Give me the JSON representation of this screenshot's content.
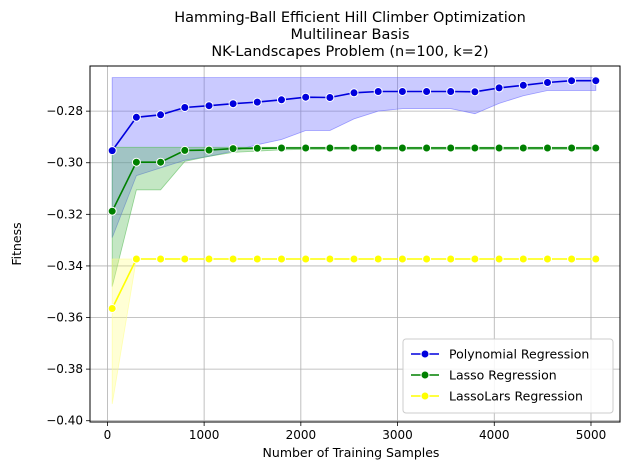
{
  "chart_data": {
    "type": "line",
    "title_lines": [
      "Hamming-Ball Efficient Hill Climber Optimization",
      "Multilinear Basis",
      "NK-Landscapes Problem (n=100, k=2)"
    ],
    "xlabel": "Number of Training Samples",
    "ylabel": "Fitness",
    "xlim": [
      -180,
      5300
    ],
    "ylim": [
      -0.4005,
      -0.2625
    ],
    "xticks": [
      0,
      1000,
      2000,
      3000,
      4000,
      5000
    ],
    "xtick_labels": [
      "0",
      "1000",
      "2000",
      "3000",
      "4000",
      "5000"
    ],
    "yticks": [
      -0.4,
      -0.38,
      -0.36,
      -0.34,
      -0.32,
      -0.3,
      -0.28
    ],
    "ytick_labels": [
      "−0.40",
      "−0.38",
      "−0.36",
      "−0.34",
      "−0.32",
      "−0.30",
      "−0.28"
    ],
    "grid": true,
    "legend_position": "lower-right",
    "x": [
      50,
      300,
      550,
      800,
      1050,
      1300,
      1550,
      1800,
      2050,
      2300,
      2550,
      2800,
      3050,
      3300,
      3550,
      3800,
      4050,
      4300,
      4550,
      4800,
      5050
    ],
    "series": [
      {
        "name": "Polynomial Regression",
        "color": "#0000dd",
        "band_color": "#6666ff",
        "values": [
          -0.2953,
          -0.2824,
          -0.2814,
          -0.2786,
          -0.2779,
          -0.2771,
          -0.2765,
          -0.2756,
          -0.2746,
          -0.2747,
          -0.2729,
          -0.2724,
          -0.2724,
          -0.2724,
          -0.2724,
          -0.2725,
          -0.271,
          -0.27,
          -0.2689,
          -0.2682,
          -0.2682
        ],
        "lower": [
          -0.329,
          -0.305,
          -0.302,
          -0.299,
          -0.2975,
          -0.2955,
          -0.293,
          -0.291,
          -0.2875,
          -0.2875,
          -0.283,
          -0.28,
          -0.279,
          -0.279,
          -0.279,
          -0.281,
          -0.277,
          -0.274,
          -0.272,
          -0.272,
          -0.272
        ],
        "upper": [
          -0.267,
          -0.267,
          -0.267,
          -0.267,
          -0.267,
          -0.267,
          -0.267,
          -0.267,
          -0.267,
          -0.267,
          -0.267,
          -0.267,
          -0.267,
          -0.267,
          -0.267,
          -0.267,
          -0.267,
          -0.267,
          -0.267,
          -0.267,
          -0.267
        ]
      },
      {
        "name": "Lasso Regression",
        "color": "#008000",
        "band_color": "#55bb55",
        "values": [
          -0.3188,
          -0.2998,
          -0.2998,
          -0.2952,
          -0.2951,
          -0.2945,
          -0.2944,
          -0.2943,
          -0.2943,
          -0.2943,
          -0.2943,
          -0.2943,
          -0.2943,
          -0.2943,
          -0.2943,
          -0.2943,
          -0.2943,
          -0.2943,
          -0.2943,
          -0.2943,
          -0.2943
        ],
        "lower": [
          -0.348,
          -0.3105,
          -0.3105,
          -0.2995,
          -0.2975,
          -0.296,
          -0.2955,
          -0.295,
          -0.2948,
          -0.2948,
          -0.2948,
          -0.2948,
          -0.2948,
          -0.2948,
          -0.2948,
          -0.2948,
          -0.2948,
          -0.2948,
          -0.2948,
          -0.2948,
          -0.2948
        ],
        "upper": [
          -0.294,
          -0.294,
          -0.294,
          -0.294,
          -0.294,
          -0.294,
          -0.294,
          -0.294,
          -0.294,
          -0.294,
          -0.294,
          -0.294,
          -0.294,
          -0.294,
          -0.294,
          -0.294,
          -0.294,
          -0.294,
          -0.294,
          -0.294,
          -0.294
        ]
      },
      {
        "name": "LassoLars Regression",
        "color": "#ffff00",
        "band_color": "#ffff88",
        "values": [
          -0.3565,
          -0.3373,
          -0.3373,
          -0.3373,
          -0.3373,
          -0.3373,
          -0.3373,
          -0.3373,
          -0.3373,
          -0.3373,
          -0.3373,
          -0.3373,
          -0.3373,
          -0.3373,
          -0.3373,
          -0.3373,
          -0.3373,
          -0.3373,
          -0.3373,
          -0.3373,
          -0.3373
        ],
        "lower": [
          -0.3935,
          -0.3373,
          -0.3373,
          -0.3373,
          -0.3373,
          -0.3373,
          -0.3373,
          -0.3373,
          -0.3373,
          -0.3373,
          -0.3373,
          -0.3373,
          -0.3373,
          -0.3373,
          -0.3373,
          -0.3373,
          -0.3373,
          -0.3373,
          -0.3373,
          -0.3373,
          -0.3373
        ],
        "upper": [
          -0.3373,
          -0.3373,
          -0.3373,
          -0.3373,
          -0.3373,
          -0.3373,
          -0.3373,
          -0.3373,
          -0.3373,
          -0.3373,
          -0.3373,
          -0.3373,
          -0.3373,
          -0.3373,
          -0.3373,
          -0.3373,
          -0.3373,
          -0.3373,
          -0.3373,
          -0.3373,
          -0.3373
        ]
      }
    ]
  }
}
